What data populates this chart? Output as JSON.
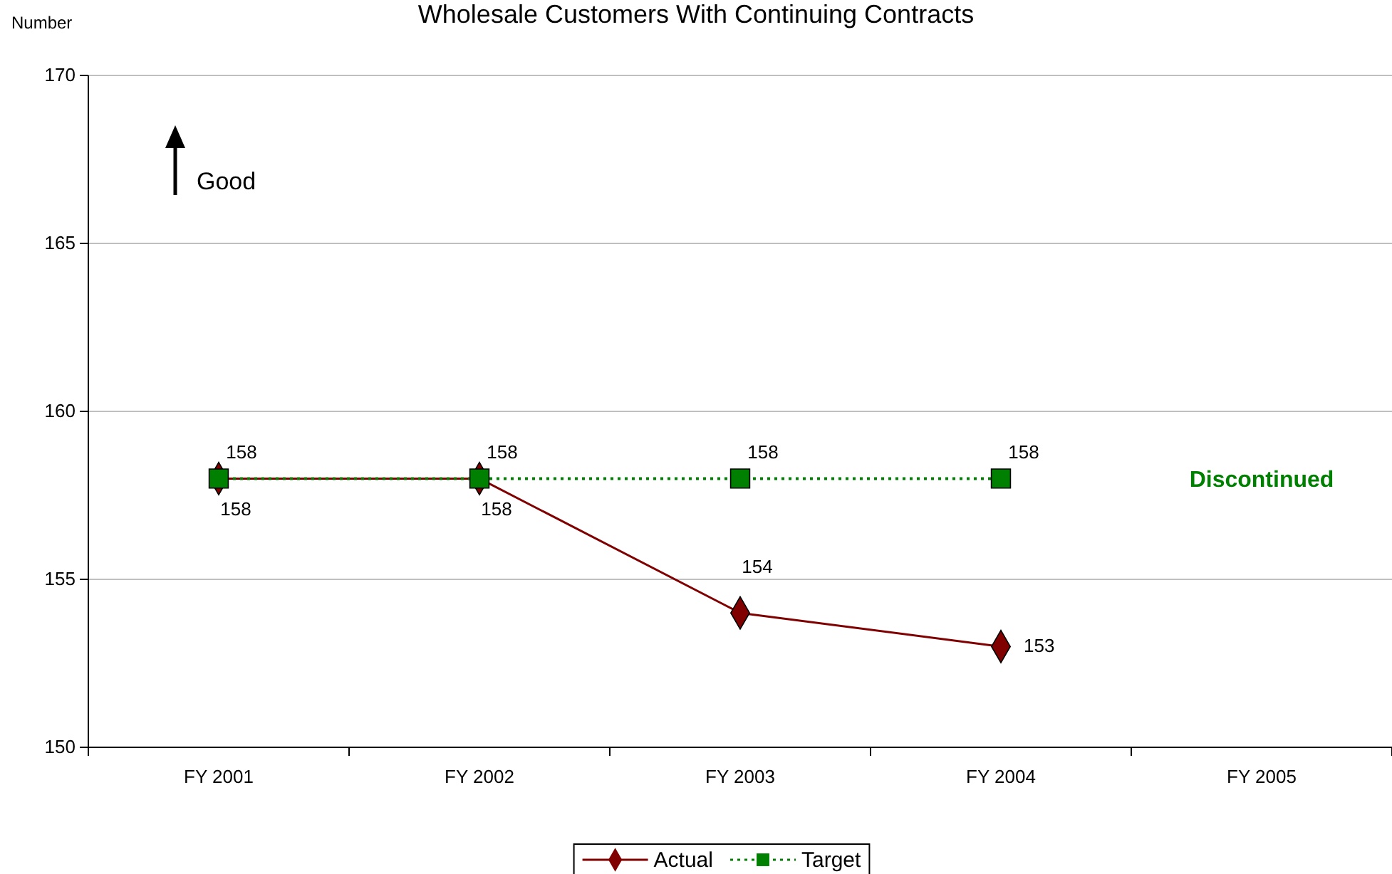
{
  "chart_data": {
    "type": "line",
    "title": "Wholesale Customers With Continuing Contracts",
    "ylabel": "Number",
    "categories": [
      "FY 2001",
      "FY 2002",
      "FY 2003",
      "FY 2004",
      "FY 2005"
    ],
    "series": [
      {
        "name": "Actual",
        "color": "#800000",
        "values": [
          158,
          158,
          154,
          153,
          null
        ],
        "marker": "diamond",
        "line_style": "solid"
      },
      {
        "name": "Target",
        "color": "#008000",
        "values": [
          158,
          158,
          158,
          158,
          null
        ],
        "marker": "square",
        "line_style": "dotted"
      }
    ],
    "ylim": [
      150,
      170
    ],
    "yticks": [
      150,
      155,
      160,
      165,
      170
    ],
    "grid": "y",
    "legend": "bottom",
    "data_labels": true,
    "annotations": [
      "Good",
      "Discontinued"
    ]
  }
}
